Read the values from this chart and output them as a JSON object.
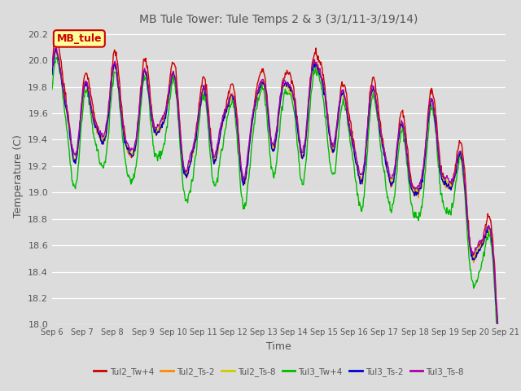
{
  "title": "MB Tule Tower: Tule Temps 2 & 3 (3/1/11-3/19/14)",
  "xlabel": "Time",
  "ylabel": "Temperature (C)",
  "ylim": [
    18.0,
    20.25
  ],
  "xlim": [
    0,
    15
  ],
  "x_tick_labels": [
    "Sep 6",
    "Sep 7",
    "Sep 8",
    "Sep 9",
    "Sep 10",
    "Sep 11",
    "Sep 12",
    "Sep 13",
    "Sep 14",
    "Sep 15",
    "Sep 16",
    "Sep 17",
    "Sep 18",
    "Sep 19",
    "Sep 20",
    "Sep 21"
  ],
  "y_ticks": [
    18.0,
    18.2,
    18.4,
    18.6,
    18.8,
    19.0,
    19.2,
    19.4,
    19.6,
    19.8,
    20.0,
    20.2
  ],
  "background_color": "#dcdcdc",
  "grid_color": "#ffffff",
  "legend_label": "MB_tule",
  "legend_bg": "#ffff99",
  "legend_border": "#cc0000",
  "series_labels": [
    "Tul2_Tw+4",
    "Tul2_Ts-2",
    "Tul2_Ts-8",
    "Tul3_Tw+4",
    "Tul3_Ts-2",
    "Tul3_Ts-8"
  ],
  "series_colors": [
    "#cc0000",
    "#ff8800",
    "#cccc00",
    "#00bb00",
    "#0000cc",
    "#aa00aa"
  ],
  "line_width": 1.0
}
